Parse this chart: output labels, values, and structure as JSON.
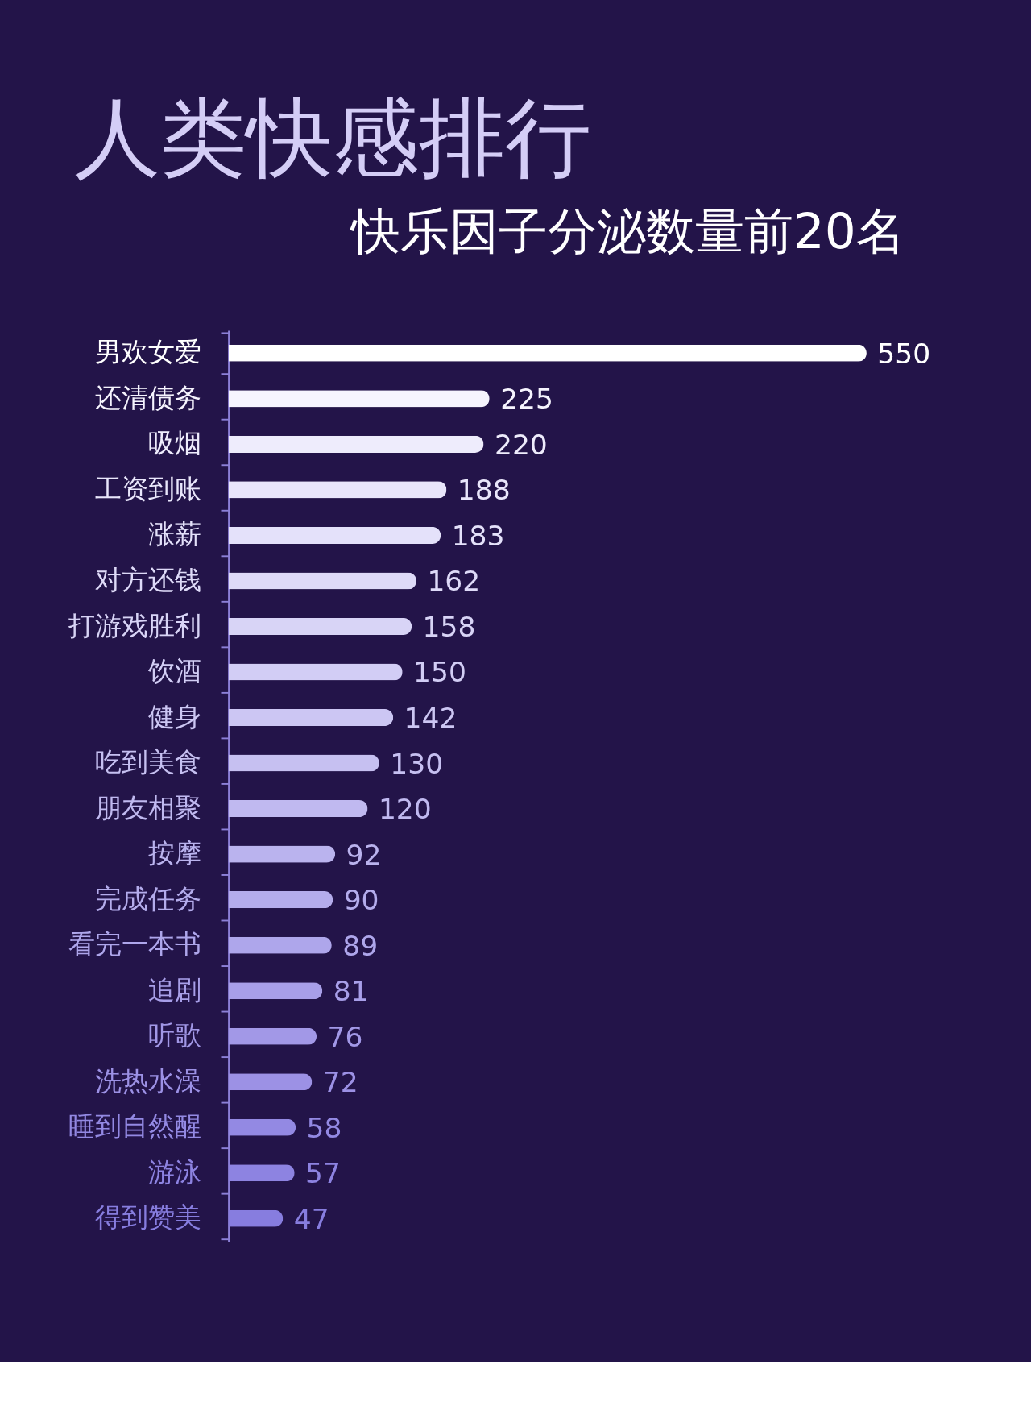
{
  "chart_data": {
    "type": "bar",
    "orientation": "horizontal",
    "title": "人类快感排行",
    "subtitle": "快乐因子分泌数量前20名",
    "categories": [
      "男欢女爱",
      "还清债务",
      "吸烟",
      "工资到账",
      "涨薪",
      "对方还钱",
      "打游戏胜利",
      "饮酒",
      "健身",
      "吃到美食",
      "朋友相聚",
      "按摩",
      "完成任务",
      "看完一本书",
      "追剧",
      "听歌",
      "洗热水澡",
      "睡到自然醒",
      "游泳",
      "得到赞美"
    ],
    "values": [
      550,
      225,
      220,
      188,
      183,
      162,
      158,
      150,
      142,
      130,
      120,
      92,
      90,
      89,
      81,
      76,
      72,
      58,
      57,
      47
    ],
    "colors": [
      "#ffffff",
      "#f6f4fe",
      "#eeecfc",
      "#e9e6fb",
      "#e4e1fa",
      "#dedaf8",
      "#d8d4f6",
      "#d2cdf5",
      "#ccc6f3",
      "#c6c0f1",
      "#c0b9f0",
      "#bab3ee",
      "#b4acec",
      "#aea6eb",
      "#a89fe9",
      "#a298e7",
      "#9c91e5",
      "#9389e3",
      "#8d83e1",
      "#877ddf"
    ],
    "data_labels": true,
    "grid": false
  }
}
